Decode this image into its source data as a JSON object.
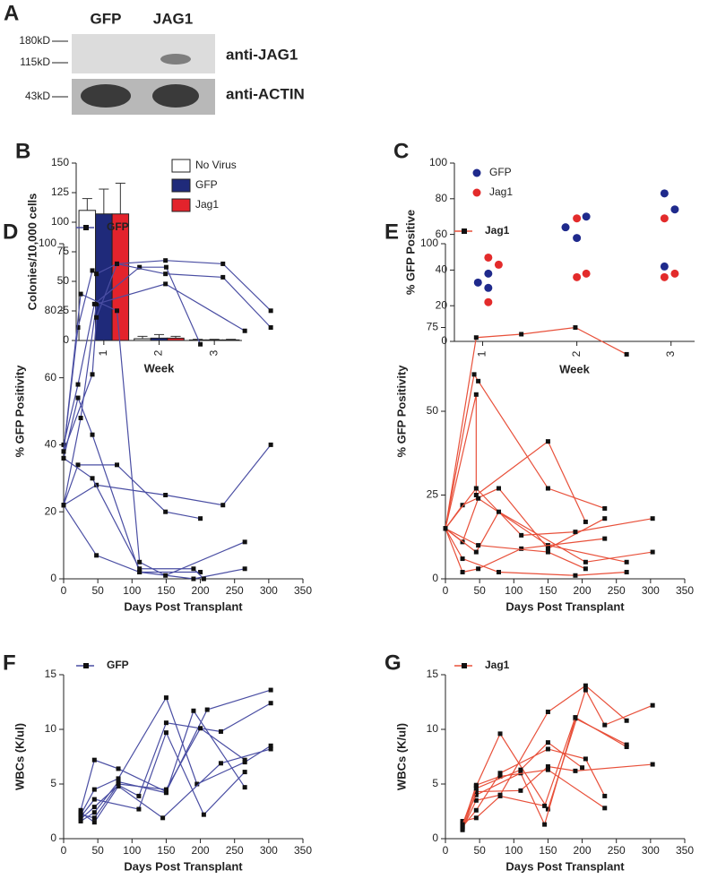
{
  "blot": {
    "panel": "A",
    "lanes": [
      "GFP",
      "JAG1"
    ],
    "markers": [
      "180kD",
      "115kD",
      "43kD"
    ],
    "antibodies": [
      "anti-JAG1",
      "anti-ACTIN"
    ]
  },
  "chart_data": [
    {
      "type": "bar",
      "panel": "B",
      "xlabel": "Week",
      "ylabel": "Colonies/10,000 cells",
      "categories": [
        "1",
        "2",
        "3"
      ],
      "ylim": [
        0,
        150
      ],
      "yticks": [
        0,
        25,
        50,
        75,
        100,
        125,
        150
      ],
      "series": [
        {
          "name": "No Virus",
          "color": "#ffffff",
          "values": [
            110,
            1.5,
            0.5
          ],
          "errors": [
            10,
            2,
            0.5
          ]
        },
        {
          "name": "GFP",
          "color": "#1f2a7a",
          "values": [
            107,
            2,
            0.5
          ],
          "errors": [
            21,
            3,
            0.5
          ]
        },
        {
          "name": "Jag1",
          "color": "#e3232c",
          "values": [
            107,
            2,
            0.5
          ],
          "errors": [
            26,
            1.5,
            0.5
          ]
        }
      ]
    },
    {
      "type": "scatter",
      "panel": "C",
      "xlabel": "Week",
      "ylabel": "% GFP Positive",
      "xlim": [
        0.7,
        3.25
      ],
      "xticks": [
        1,
        2,
        3
      ],
      "ylim": [
        0,
        100
      ],
      "yticks": [
        0,
        20,
        40,
        60,
        80,
        100
      ],
      "series": [
        {
          "name": "GFP",
          "color": "#1f2a8c",
          "x": [
            0.95,
            1.06,
            1.06,
            1.88,
            2.1,
            2.0,
            2.93,
            3.04,
            2.93
          ],
          "values": [
            33,
            38,
            30,
            64,
            70,
            58,
            83,
            74,
            42
          ]
        },
        {
          "name": "Jag1",
          "color": "#e32b2b",
          "x": [
            1.06,
            1.17,
            1.06,
            2.0,
            2.1,
            2.0,
            2.93,
            3.04,
            2.93
          ],
          "values": [
            47,
            43,
            22,
            69,
            38,
            36,
            69,
            38,
            36
          ]
        }
      ]
    },
    {
      "type": "line",
      "panel": "D",
      "xlabel": "Days Post Transplant",
      "ylabel": "% GFP Positivity",
      "xlim": [
        0,
        350
      ],
      "xticks": [
        0,
        50,
        100,
        150,
        200,
        250,
        300,
        350
      ],
      "ylim": [
        0,
        100
      ],
      "yticks": [
        0,
        20,
        40,
        60,
        80,
        100
      ],
      "marker_color": "#111111",
      "series": [
        {
          "name": "GFP",
          "color": "#4a4ea3",
          "lines": [
            {
              "x": [
                0,
                21,
                42,
                48,
                78,
                149,
                233,
                303
              ],
              "values": [
                38,
                75,
                92,
                91,
                94,
                95,
                94,
                80
              ]
            },
            {
              "x": [
                0,
                21,
                45,
                111,
                150,
                200
              ],
              "values": [
                40,
                58,
                82,
                93,
                93,
                70
              ]
            },
            {
              "x": [
                0,
                25,
                48,
                149,
                265
              ],
              "values": [
                22,
                48,
                82,
                88,
                74
              ]
            },
            {
              "x": [
                0,
                42,
                48,
                78,
                149,
                233,
                303
              ],
              "values": [
                38,
                61,
                78,
                94,
                91,
                90,
                75
              ]
            },
            {
              "x": [
                0,
                21,
                42,
                111,
                200
              ],
              "values": [
                36,
                54,
                43,
                2,
                2
              ]
            },
            {
              "x": [
                0,
                21,
                78,
                149,
                200
              ],
              "values": [
                22,
                34,
                34,
                20,
                18
              ]
            },
            {
              "x": [
                0,
                48,
                149,
                233,
                303
              ],
              "values": [
                22,
                28,
                25,
                22,
                40
              ]
            },
            {
              "x": [
                0,
                48,
                111,
                190,
                265
              ],
              "values": [
                22,
                7,
                2,
                0,
                3
              ]
            },
            {
              "x": [
                0,
                25,
                78,
                111,
                149,
                265
              ],
              "values": [
                38,
                85,
                80,
                5,
                1,
                11
              ]
            },
            {
              "x": [
                0,
                42,
                111,
                190,
                205
              ],
              "values": [
                36,
                30,
                3,
                3,
                0
              ]
            }
          ]
        }
      ]
    },
    {
      "type": "line",
      "panel": "E",
      "xlabel": "Days Post Transplant",
      "ylabel": "% GFP Positivity",
      "xlim": [
        0,
        350
      ],
      "xticks": [
        0,
        50,
        100,
        150,
        200,
        250,
        300,
        350
      ],
      "ylim": [
        0,
        100
      ],
      "yticks": [
        0,
        25,
        50,
        75,
        100
      ],
      "marker_color": "#111111",
      "series": [
        {
          "name": "Jag1",
          "color": "#e8503a",
          "lines": [
            {
              "x": [
                0,
                45,
                111,
                190,
                265
              ],
              "values": [
                15,
                72,
                73,
                75,
                67
              ]
            },
            {
              "x": [
                0,
                42,
                48,
                150,
                233
              ],
              "values": [
                15,
                61,
                59,
                27,
                21
              ]
            },
            {
              "x": [
                0,
                45,
                45,
                150,
                205
              ],
              "values": [
                15,
                55,
                25,
                41,
                17
              ]
            },
            {
              "x": [
                0,
                25,
                78,
                150,
                233
              ],
              "values": [
                15,
                22,
                27,
                9,
                18
              ]
            },
            {
              "x": [
                0,
                45,
                111,
                190,
                303
              ],
              "values": [
                15,
                27,
                13,
                14,
                18
              ]
            },
            {
              "x": [
                0,
                25,
                48,
                150,
                265
              ],
              "values": [
                15,
                11,
                24,
                10,
                5
              ]
            },
            {
              "x": [
                0,
                45,
                78,
                205,
                303
              ],
              "values": [
                15,
                8,
                20,
                5,
                8
              ]
            },
            {
              "x": [
                0,
                25,
                48,
                111,
                233
              ],
              "values": [
                15,
                2,
                3,
                9,
                12
              ]
            },
            {
              "x": [
                0,
                48,
                150,
                205
              ],
              "values": [
                15,
                10,
                8,
                3
              ]
            },
            {
              "x": [
                0,
                25,
                78,
                190,
                265
              ],
              "values": [
                15,
                6,
                2,
                1,
                2
              ]
            }
          ]
        }
      ]
    },
    {
      "type": "line",
      "panel": "F",
      "xlabel": "Days Post Transplant",
      "ylabel": "WBCs (K/ul)",
      "xlim": [
        0,
        350
      ],
      "xticks": [
        0,
        50,
        100,
        150,
        200,
        250,
        300,
        350
      ],
      "ylim": [
        0,
        15
      ],
      "yticks": [
        0,
        5,
        10,
        15
      ],
      "marker_color": "#111111",
      "series": [
        {
          "name": "GFP",
          "color": "#4a4ea3",
          "lines": [
            {
              "x": [
                25,
                45,
                80,
                150,
                210,
                303
              ],
              "values": [
                2.6,
                7.2,
                6.4,
                4.3,
                11.8,
                13.6
              ]
            },
            {
              "x": [
                25,
                45,
                80,
                150,
                195,
                265,
                303
              ],
              "values": [
                2.2,
                4.5,
                5.5,
                12.9,
                5,
                7,
                8.5
              ]
            },
            {
              "x": [
                25,
                45,
                80,
                110,
                150,
                230,
                303
              ],
              "values": [
                1.8,
                2.9,
                4.9,
                3.9,
                10.6,
                9.8,
                12.4
              ]
            },
            {
              "x": [
                25,
                45,
                80,
                150,
                190,
                265
              ],
              "values": [
                1.6,
                2.4,
                5.2,
                4.2,
                11.7,
                4.7
              ]
            },
            {
              "x": [
                25,
                45,
                110,
                150,
                205,
                265
              ],
              "values": [
                2.0,
                3.6,
                2.7,
                9.7,
                2.2,
                6.1
              ]
            },
            {
              "x": [
                25,
                45,
                80,
                145,
                230,
                303
              ],
              "values": [
                2.4,
                1.5,
                4.8,
                1.9,
                6.9,
                8.2
              ]
            },
            {
              "x": [
                25,
                45,
                80,
                150,
                200,
                265
              ],
              "values": [
                2.2,
                1.9,
                5.0,
                4.5,
                10.1,
                7.2
              ]
            }
          ]
        }
      ]
    },
    {
      "type": "line",
      "panel": "G",
      "xlabel": "Days Post Transplant",
      "ylabel": "WBCs (K/ul)",
      "xlim": [
        0,
        350
      ],
      "xticks": [
        0,
        50,
        100,
        150,
        200,
        250,
        300,
        350
      ],
      "ylim": [
        0,
        15
      ],
      "yticks": [
        0,
        5,
        10,
        15
      ],
      "marker_color": "#111111",
      "series": [
        {
          "name": "Jag1",
          "color": "#e8503a",
          "lines": [
            {
              "x": [
                25,
                45,
                80,
                150,
                205,
                233,
                303
              ],
              "values": [
                1.2,
                4.8,
                9.6,
                2.7,
                13.6,
                10.4,
                12.2
              ]
            },
            {
              "x": [
                25,
                45,
                80,
                150,
                205,
                265
              ],
              "values": [
                0.9,
                3.5,
                4.0,
                11.6,
                14.0,
                10.8
              ]
            },
            {
              "x": [
                25,
                45,
                110,
                145,
                190,
                265
              ],
              "values": [
                1.4,
                4.0,
                6.0,
                1.3,
                11.0,
                8.6
              ]
            },
            {
              "x": [
                25,
                45,
                80,
                150,
                205,
                233
              ],
              "values": [
                1.1,
                2.6,
                6.0,
                8.2,
                7.3,
                3.9
              ]
            },
            {
              "x": [
                25,
                45,
                110,
                150,
                190,
                303
              ],
              "values": [
                0.8,
                4.3,
                4.4,
                6.6,
                6.2,
                6.8
              ]
            },
            {
              "x": [
                25,
                45,
                80,
                145,
                190,
                265
              ],
              "values": [
                1.6,
                1.9,
                3.9,
                3.0,
                11.1,
                8.4
              ]
            },
            {
              "x": [
                25,
                45,
                80,
                150,
                233
              ],
              "values": [
                1.0,
                4.9,
                5.7,
                6.3,
                2.8
              ]
            },
            {
              "x": [
                25,
                45,
                110,
                150,
                200
              ],
              "values": [
                1.3,
                4.6,
                6.3,
                8.8,
                6.5
              ]
            }
          ]
        }
      ]
    }
  ]
}
